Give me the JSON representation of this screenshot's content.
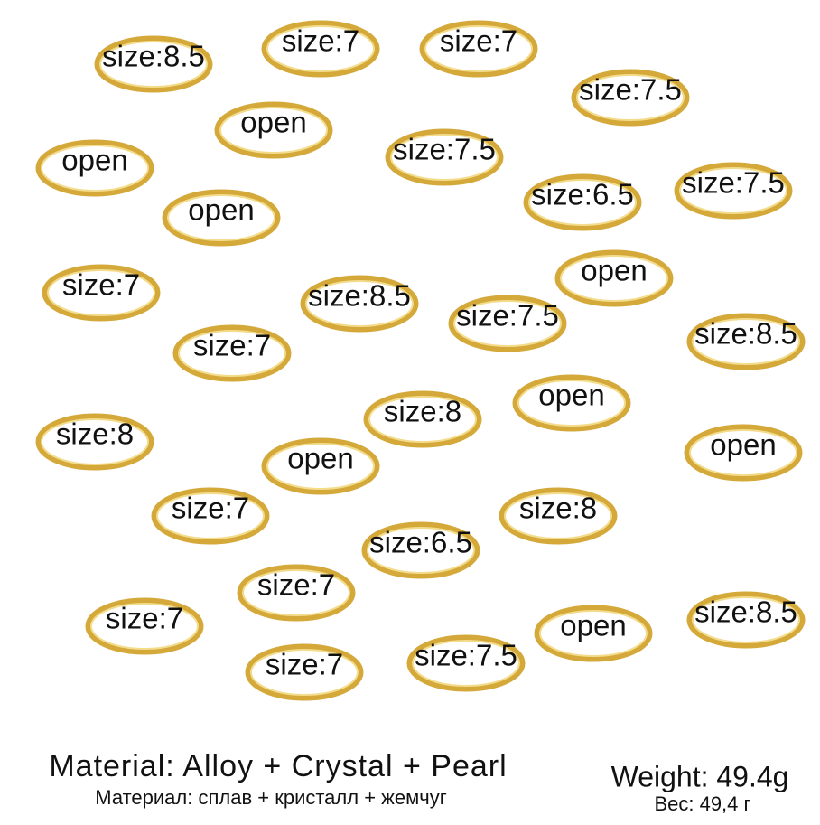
{
  "labels": [
    "size:8.5",
    "size:7",
    "size:7",
    "size:7.5",
    "open",
    "open",
    "size:7.5",
    "size:6.5",
    "size:7.5",
    "open",
    "size:7",
    "size:8.5",
    "size:7.5",
    "open",
    "size:8.5",
    "size:7",
    "size:8",
    "open",
    "size:8",
    "open",
    "open",
    "size:7",
    "size:8",
    "size:6.5",
    "size:7",
    "size:7",
    "open",
    "size:8.5",
    "size:7.5",
    "size:7"
  ],
  "footer": {
    "material_en": "Material: Alloy + Crystal + Pearl",
    "material_ru": "Материал: сплав + кристалл +  жемчуг",
    "weight_en": "Weight: 49.4g",
    "weight_ru": "Вес: 49,4 г"
  }
}
